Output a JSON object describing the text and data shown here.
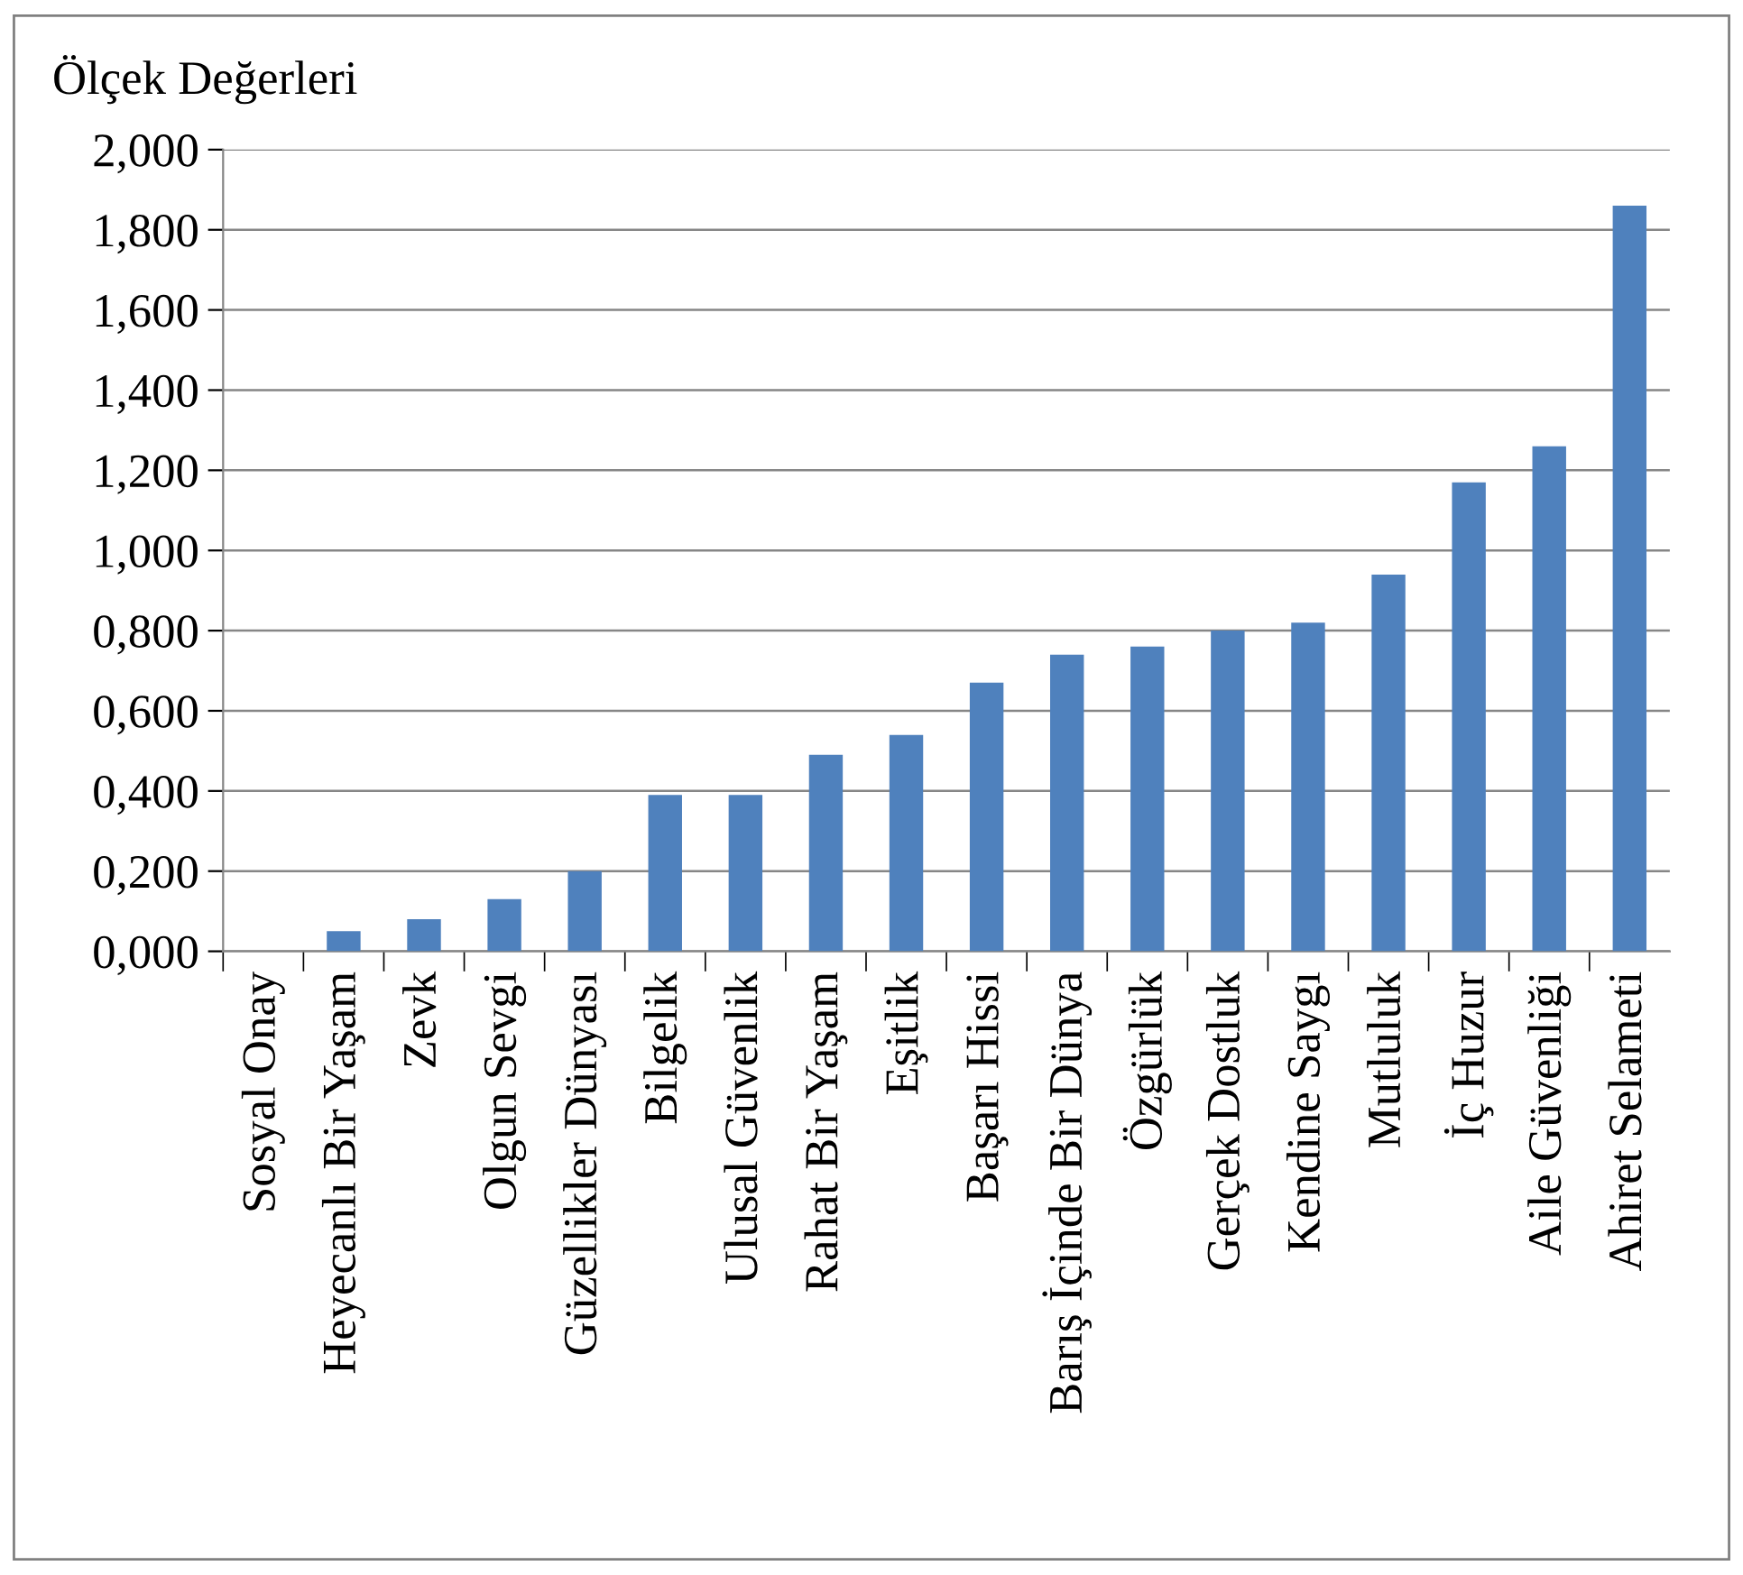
{
  "chart_data": {
    "type": "bar",
    "ylabel": "Ölçek Değerleri",
    "categories": [
      "Sosyal Onay",
      "Heyecanlı Bir Yaşam",
      "Zevk",
      "Olgun Sevgi",
      "Güzellikler Dünyası",
      "Bilgelik",
      "Ulusal Güvenlik",
      "Rahat Bir Yaşam",
      "Eşitlik",
      "Başarı Hissi",
      "Barış İçinde Bir Dünya",
      "Özgürlük",
      "Gerçek Dostluk",
      "Kendine Saygı",
      "Mutluluk",
      "İç Huzur",
      "Aile Güvenliği",
      "Ahiret Selameti"
    ],
    "values": [
      0,
      0.05,
      0.08,
      0.13,
      0.2,
      0.39,
      0.39,
      0.49,
      0.54,
      0.67,
      0.74,
      0.76,
      0.8,
      0.82,
      0.94,
      1.17,
      1.26,
      1.86
    ],
    "color": "#4f81bd",
    "ylim": [
      0,
      2
    ],
    "yticks": [
      {
        "value": 0,
        "label": "0,000"
      },
      {
        "value": 0.2,
        "label": "0,200"
      },
      {
        "value": 0.4,
        "label": "0,400"
      },
      {
        "value": 0.6,
        "label": "0,600"
      },
      {
        "value": 0.8,
        "label": "0,800"
      },
      {
        "value": 1,
        "label": "1,000"
      },
      {
        "value": 1.2,
        "label": "1,200"
      },
      {
        "value": 1.4,
        "label": "1,400"
      },
      {
        "value": 1.6,
        "label": "1,600"
      },
      {
        "value": 1.8,
        "label": "1,800"
      },
      {
        "value": 2,
        "label": "2,000"
      }
    ],
    "grid": "y"
  }
}
